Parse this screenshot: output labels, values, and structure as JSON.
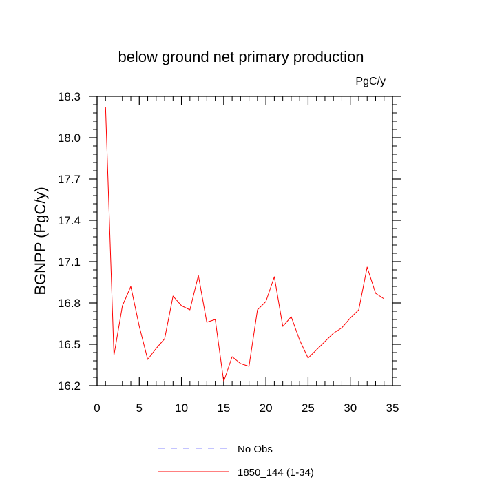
{
  "chart_data": {
    "type": "line",
    "title": "below ground net primary production",
    "units_label": "PgC/y",
    "ylabel": "BGNPP  (PgC/y)",
    "xlabel": "",
    "xlim": [
      0,
      35
    ],
    "ylim": [
      16.2,
      18.3
    ],
    "x_ticks": [
      0,
      5,
      10,
      15,
      20,
      25,
      30,
      35
    ],
    "x_tick_labels": [
      "0",
      "5",
      "10",
      "15",
      "20",
      "25",
      "30",
      "35"
    ],
    "y_ticks": [
      16.2,
      16.5,
      16.8,
      17.1,
      17.4,
      17.7,
      18.0,
      18.3
    ],
    "y_tick_labels": [
      "16.2",
      "16.5",
      "16.8",
      "17.1",
      "17.4",
      "17.7",
      "18.0",
      "18.3"
    ],
    "grid": false,
    "legend_position": "bottom",
    "series": [
      {
        "name": "1850_144 (1-34)",
        "color": "#ff0000",
        "style": "solid",
        "x": [
          1,
          2,
          3,
          4,
          5,
          6,
          7,
          8,
          9,
          10,
          11,
          12,
          13,
          14,
          15,
          16,
          17,
          18,
          19,
          20,
          21,
          22,
          23,
          24,
          25,
          26,
          27,
          28,
          29,
          30,
          31,
          32,
          33,
          34
        ],
        "y": [
          18.22,
          16.42,
          16.78,
          16.92,
          16.63,
          16.39,
          16.47,
          16.54,
          16.85,
          16.78,
          16.75,
          17.0,
          16.66,
          16.68,
          16.23,
          16.41,
          16.36,
          16.34,
          16.75,
          16.81,
          16.99,
          16.63,
          16.7,
          16.53,
          16.4,
          16.46,
          16.52,
          16.58,
          16.62,
          16.69,
          16.75,
          17.06,
          16.87,
          16.83
        ]
      }
    ],
    "legend": [
      {
        "label": "No Obs",
        "color": "#8888ff",
        "style": "dashed"
      },
      {
        "label": "1850_144 (1-34)",
        "color": "#ff0000",
        "style": "solid"
      }
    ]
  }
}
